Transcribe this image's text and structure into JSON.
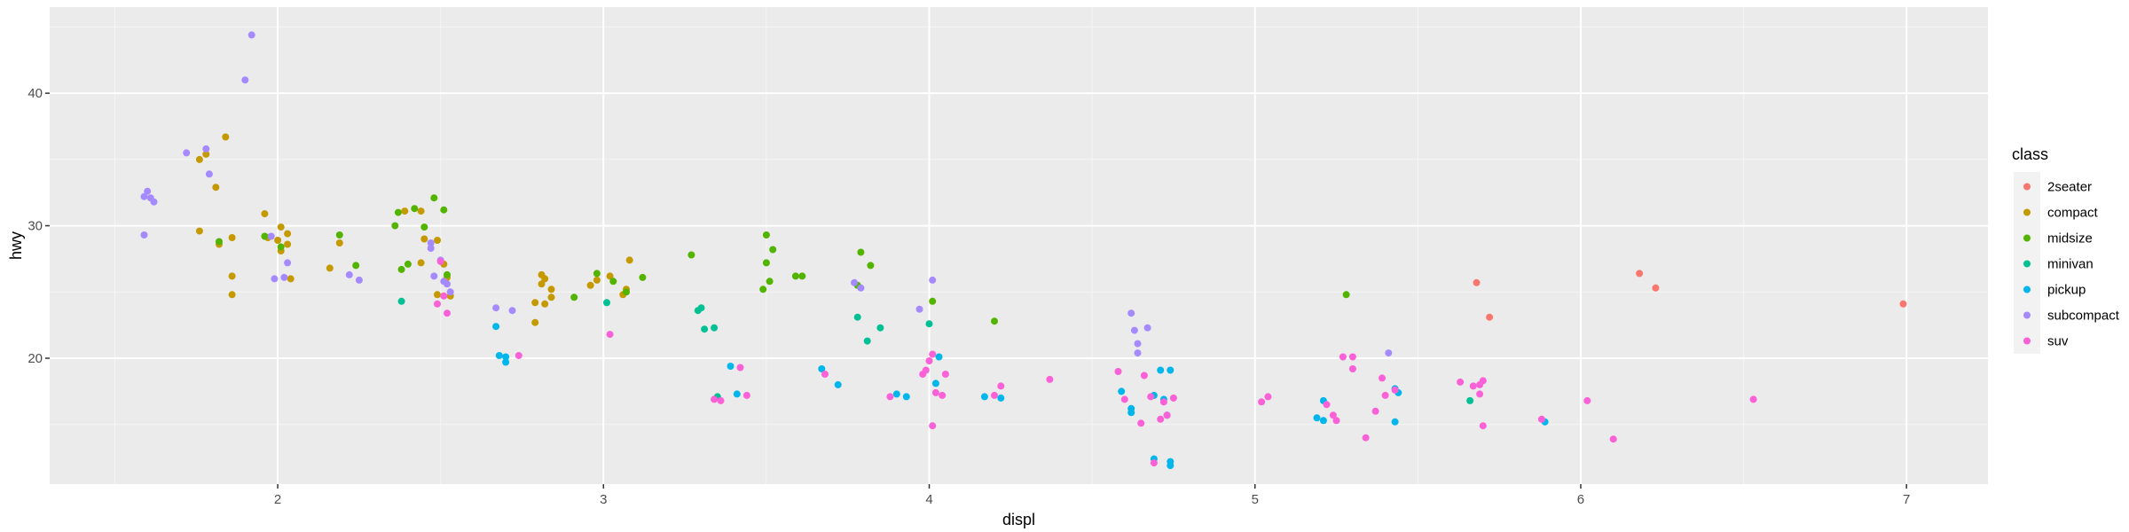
{
  "chart_data": {
    "type": "scatter",
    "title": "",
    "xlabel": "displ",
    "ylabel": "hwy",
    "xlim": [
      1.3,
      7.25
    ],
    "ylim": [
      10.5,
      46.5
    ],
    "x_ticks": [
      2,
      3,
      4,
      5,
      6,
      7
    ],
    "y_ticks": [
      20,
      30,
      40
    ],
    "grid": true,
    "legend": {
      "title": "class",
      "position": "right"
    },
    "series": [
      {
        "name": "2seater",
        "color": "#F8766D",
        "points": [
          [
            5.68,
            25.7
          ],
          [
            5.72,
            23.1
          ],
          [
            6.18,
            26.4
          ],
          [
            6.23,
            25.3
          ],
          [
            6.99,
            24.1
          ]
        ]
      },
      {
        "name": "compact",
        "color": "#C49A00",
        "points": [
          [
            1.76,
            35.0
          ],
          [
            1.78,
            35.4
          ],
          [
            1.81,
            32.9
          ],
          [
            1.84,
            36.7
          ],
          [
            1.76,
            29.6
          ],
          [
            1.82,
            28.6
          ],
          [
            1.86,
            29.1
          ],
          [
            1.86,
            26.2
          ],
          [
            1.86,
            24.8
          ],
          [
            1.96,
            30.9
          ],
          [
            1.97,
            29.1
          ],
          [
            2.0,
            28.9
          ],
          [
            2.01,
            28.1
          ],
          [
            2.01,
            29.9
          ],
          [
            2.03,
            29.4
          ],
          [
            2.03,
            28.6
          ],
          [
            2.04,
            26.0
          ],
          [
            2.16,
            26.8
          ],
          [
            2.19,
            28.7
          ],
          [
            2.39,
            31.1
          ],
          [
            2.44,
            31.1
          ],
          [
            2.45,
            29.0
          ],
          [
            2.44,
            27.2
          ],
          [
            2.49,
            28.9
          ],
          [
            2.49,
            24.8
          ],
          [
            2.51,
            27.1
          ],
          [
            2.52,
            26.1
          ],
          [
            2.53,
            24.7
          ],
          [
            2.79,
            22.7
          ],
          [
            2.79,
            24.2
          ],
          [
            2.81,
            25.6
          ],
          [
            2.81,
            26.3
          ],
          [
            2.82,
            26.0
          ],
          [
            2.82,
            24.1
          ],
          [
            2.84,
            24.6
          ],
          [
            2.84,
            25.2
          ],
          [
            3.06,
            24.8
          ],
          [
            3.07,
            25.2
          ],
          [
            3.08,
            27.4
          ],
          [
            2.98,
            25.9
          ],
          [
            3.02,
            26.2
          ],
          [
            2.96,
            25.5
          ]
        ]
      },
      {
        "name": "midsize",
        "color": "#53B400",
        "points": [
          [
            1.82,
            28.8
          ],
          [
            1.96,
            29.2
          ],
          [
            2.01,
            28.4
          ],
          [
            2.19,
            29.3
          ],
          [
            2.24,
            27.0
          ],
          [
            2.37,
            31.0
          ],
          [
            2.36,
            30.0
          ],
          [
            2.38,
            26.7
          ],
          [
            2.4,
            27.1
          ],
          [
            2.42,
            31.3
          ],
          [
            2.45,
            29.9
          ],
          [
            2.48,
            32.1
          ],
          [
            2.51,
            31.2
          ],
          [
            2.52,
            26.3
          ],
          [
            2.91,
            24.6
          ],
          [
            2.98,
            26.4
          ],
          [
            3.03,
            25.8
          ],
          [
            3.07,
            25.0
          ],
          [
            3.12,
            26.1
          ],
          [
            3.27,
            27.8
          ],
          [
            3.49,
            25.2
          ],
          [
            3.5,
            27.2
          ],
          [
            3.5,
            29.3
          ],
          [
            3.52,
            28.2
          ],
          [
            3.51,
            25.8
          ],
          [
            3.59,
            26.2
          ],
          [
            3.61,
            26.2
          ],
          [
            3.78,
            25.5
          ],
          [
            3.79,
            28.0
          ],
          [
            3.82,
            27.0
          ],
          [
            4.01,
            24.3
          ],
          [
            4.2,
            22.8
          ],
          [
            5.28,
            24.8
          ]
        ]
      },
      {
        "name": "minivan",
        "color": "#00C094",
        "points": [
          [
            2.38,
            24.3
          ],
          [
            3.01,
            24.2
          ],
          [
            3.29,
            23.6
          ],
          [
            3.3,
            23.8
          ],
          [
            3.31,
            22.2
          ],
          [
            3.34,
            22.3
          ],
          [
            3.35,
            17.1
          ],
          [
            3.78,
            23.1
          ],
          [
            3.81,
            21.3
          ],
          [
            3.85,
            22.3
          ],
          [
            4.0,
            22.6
          ],
          [
            5.66,
            16.8
          ]
        ]
      },
      {
        "name": "pickup",
        "color": "#00B6EB",
        "points": [
          [
            2.68,
            20.2
          ],
          [
            2.7,
            19.7
          ],
          [
            2.7,
            20.1
          ],
          [
            2.67,
            22.4
          ],
          [
            3.39,
            19.4
          ],
          [
            3.41,
            17.3
          ],
          [
            3.67,
            19.2
          ],
          [
            3.72,
            18.0
          ],
          [
            3.9,
            17.3
          ],
          [
            3.93,
            17.1
          ],
          [
            4.03,
            20.1
          ],
          [
            4.02,
            18.1
          ],
          [
            4.17,
            17.1
          ],
          [
            4.22,
            17.0
          ],
          [
            4.59,
            17.5
          ],
          [
            4.62,
            16.2
          ],
          [
            4.62,
            15.9
          ],
          [
            4.69,
            12.4
          ],
          [
            4.69,
            17.2
          ],
          [
            4.71,
            19.1
          ],
          [
            4.72,
            16.9
          ],
          [
            4.73,
            15.7
          ],
          [
            4.74,
            12.2
          ],
          [
            4.74,
            19.1
          ],
          [
            4.74,
            11.9
          ],
          [
            5.19,
            15.5
          ],
          [
            5.21,
            15.3
          ],
          [
            5.21,
            16.8
          ],
          [
            5.43,
            17.7
          ],
          [
            5.43,
            15.2
          ],
          [
            5.44,
            17.4
          ],
          [
            5.89,
            15.2
          ]
        ]
      },
      {
        "name": "subcompact",
        "color": "#A58AFF",
        "points": [
          [
            1.59,
            32.2
          ],
          [
            1.6,
            32.6
          ],
          [
            1.61,
            32.1
          ],
          [
            1.62,
            31.8
          ],
          [
            1.59,
            29.3
          ],
          [
            1.72,
            35.5
          ],
          [
            1.78,
            35.8
          ],
          [
            1.79,
            33.9
          ],
          [
            1.9,
            41.0
          ],
          [
            1.92,
            44.4
          ],
          [
            1.98,
            29.2
          ],
          [
            1.99,
            26.0
          ],
          [
            2.02,
            26.1
          ],
          [
            2.03,
            27.2
          ],
          [
            2.22,
            26.3
          ],
          [
            2.25,
            25.9
          ],
          [
            2.47,
            28.7
          ],
          [
            2.47,
            28.3
          ],
          [
            2.48,
            26.2
          ],
          [
            2.5,
            27.4
          ],
          [
            2.51,
            25.8
          ],
          [
            2.52,
            25.6
          ],
          [
            2.53,
            25.0
          ],
          [
            2.67,
            23.8
          ],
          [
            2.72,
            23.6
          ],
          [
            3.77,
            25.7
          ],
          [
            3.79,
            25.3
          ],
          [
            3.97,
            23.7
          ],
          [
            4.01,
            25.9
          ],
          [
            4.62,
            23.4
          ],
          [
            4.63,
            22.1
          ],
          [
            4.64,
            21.1
          ],
          [
            4.64,
            20.4
          ],
          [
            4.67,
            22.3
          ],
          [
            5.41,
            20.4
          ]
        ]
      },
      {
        "name": "suv",
        "color": "#FB61D7",
        "points": [
          [
            2.51,
            24.7
          ],
          [
            2.52,
            23.4
          ],
          [
            2.49,
            24.1
          ],
          [
            2.5,
            27.3
          ],
          [
            2.74,
            20.2
          ],
          [
            3.02,
            21.8
          ],
          [
            3.34,
            16.9
          ],
          [
            3.36,
            16.8
          ],
          [
            3.42,
            19.3
          ],
          [
            3.44,
            17.2
          ],
          [
            3.68,
            18.8
          ],
          [
            3.88,
            17.1
          ],
          [
            3.98,
            18.8
          ],
          [
            3.99,
            19.1
          ],
          [
            4.0,
            19.8
          ],
          [
            4.01,
            20.3
          ],
          [
            4.01,
            14.9
          ],
          [
            4.02,
            17.4
          ],
          [
            4.04,
            17.2
          ],
          [
            4.05,
            18.8
          ],
          [
            4.2,
            17.2
          ],
          [
            4.22,
            17.9
          ],
          [
            4.37,
            18.4
          ],
          [
            4.58,
            19.0
          ],
          [
            4.6,
            16.9
          ],
          [
            4.65,
            15.1
          ],
          [
            4.66,
            18.7
          ],
          [
            4.68,
            17.1
          ],
          [
            4.69,
            12.1
          ],
          [
            4.71,
            15.4
          ],
          [
            4.72,
            16.7
          ],
          [
            4.73,
            15.7
          ],
          [
            4.75,
            17.0
          ],
          [
            5.02,
            16.7
          ],
          [
            5.04,
            17.1
          ],
          [
            5.22,
            16.5
          ],
          [
            5.24,
            15.7
          ],
          [
            5.25,
            15.3
          ],
          [
            5.27,
            20.1
          ],
          [
            5.3,
            19.2
          ],
          [
            5.3,
            20.1
          ],
          [
            5.34,
            14.0
          ],
          [
            5.37,
            16.0
          ],
          [
            5.39,
            18.5
          ],
          [
            5.4,
            17.2
          ],
          [
            5.43,
            17.6
          ],
          [
            5.63,
            18.2
          ],
          [
            5.67,
            17.9
          ],
          [
            5.69,
            18.0
          ],
          [
            5.7,
            18.3
          ],
          [
            5.69,
            17.3
          ],
          [
            5.7,
            14.9
          ],
          [
            5.88,
            15.4
          ],
          [
            6.02,
            16.8
          ],
          [
            6.1,
            13.9
          ],
          [
            6.53,
            16.9
          ]
        ]
      }
    ]
  }
}
